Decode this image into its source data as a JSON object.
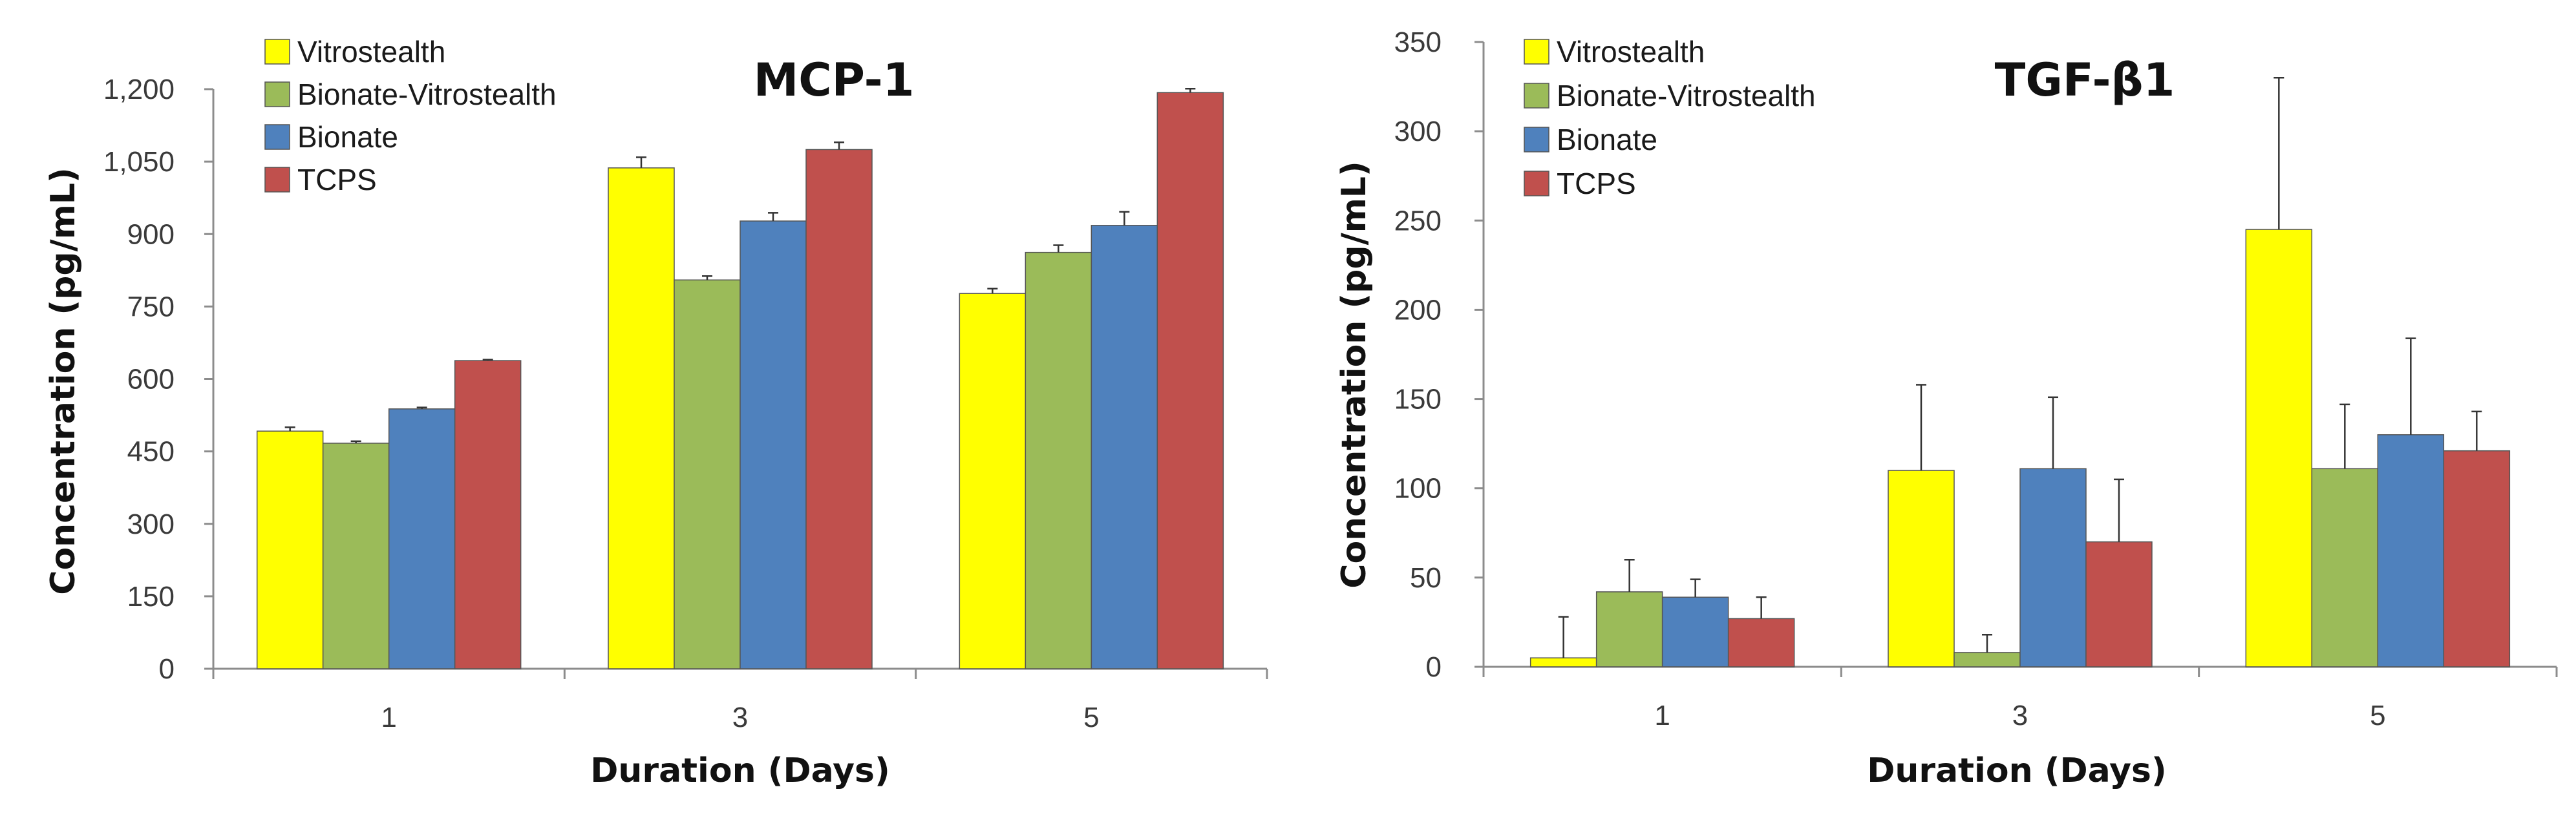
{
  "colors": {
    "Vitrostealth": "#FFFF00",
    "Bionate-Vitrostealth": "#9BBB59",
    "Bionate": "#4F81BD",
    "TCPS": "#C0504D",
    "axis": "#8c8c8c",
    "bar_outline": "#555555",
    "error_bar": "#333333"
  },
  "chart_data": [
    {
      "type": "bar",
      "title": "MCP-1",
      "xlabel": "Duration (Days)",
      "ylabel": "Concentration (pg/mL)",
      "categories": [
        "1",
        "3",
        "5"
      ],
      "ylim": [
        0,
        1200
      ],
      "yticks": [
        0,
        150,
        300,
        450,
        600,
        750,
        900,
        1050,
        1200
      ],
      "ytick_labels": [
        "0",
        "150",
        "300",
        "450",
        "600",
        "750",
        "900",
        "1,050",
        "1,200"
      ],
      "grid": false,
      "legend": "top-left",
      "series": [
        {
          "name": "Vitrostealth",
          "values": [
            492,
            1037,
            777
          ],
          "errors": [
            8,
            22,
            10
          ]
        },
        {
          "name": "Bionate-Vitrostealth",
          "values": [
            467,
            805,
            862
          ],
          "errors": [
            4,
            8,
            15
          ]
        },
        {
          "name": "Bionate",
          "values": [
            538,
            927,
            918
          ],
          "errors": [
            3,
            17,
            28
          ]
        },
        {
          "name": "TCPS",
          "values": [
            638,
            1075,
            1193
          ],
          "errors": [
            2,
            15,
            8
          ]
        }
      ]
    },
    {
      "type": "bar",
      "title": "TGF-β1",
      "xlabel": "Duration (Days)",
      "ylabel": "Concentration (pg/mL)",
      "categories": [
        "1",
        "3",
        "5"
      ],
      "ylim": [
        0,
        350
      ],
      "yticks": [
        0,
        50,
        100,
        150,
        200,
        250,
        300,
        350
      ],
      "ytick_labels": [
        "0",
        "50",
        "100",
        "150",
        "200",
        "250",
        "300",
        "350"
      ],
      "grid": false,
      "legend": "top-left",
      "series": [
        {
          "name": "Vitrostealth",
          "values": [
            5,
            110,
            245
          ],
          "errors": [
            23,
            48,
            85
          ]
        },
        {
          "name": "Bionate-Vitrostealth",
          "values": [
            42,
            8,
            111
          ],
          "errors": [
            18,
            10,
            36
          ]
        },
        {
          "name": "Bionate",
          "values": [
            39,
            111,
            130
          ],
          "errors": [
            10,
            40,
            54
          ]
        },
        {
          "name": "TCPS",
          "values": [
            27,
            70,
            121
          ],
          "errors": [
            12,
            35,
            22
          ]
        }
      ]
    }
  ]
}
